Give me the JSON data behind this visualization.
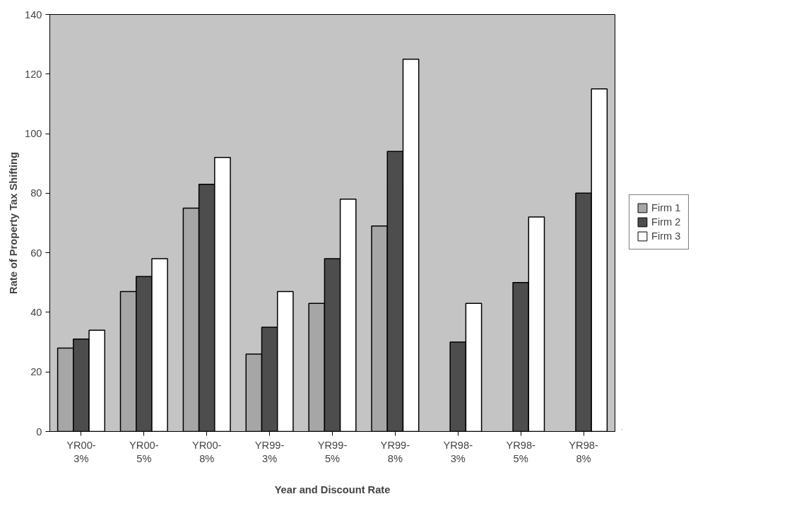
{
  "chart_data": {
    "type": "bar",
    "xlabel": "Year and Discount Rate",
    "ylabel": "Rate of Property Tax Shifting",
    "categories": [
      "YR00-\n3%",
      "YR00-\n5%",
      "YR00-\n8%",
      "YR99-\n3%",
      "YR99-\n5%",
      "YR99-\n8%",
      "YR98-\n3%",
      "YR98-\n5%",
      "YR98-\n8%"
    ],
    "series": [
      {
        "name": "Firm 1",
        "color": "#a6a6a6",
        "values": [
          28,
          47,
          75,
          26,
          43,
          69,
          null,
          null,
          null
        ]
      },
      {
        "name": "Firm 2",
        "color": "#4d4d4d",
        "values": [
          31,
          52,
          83,
          35,
          58,
          94,
          30,
          50,
          80
        ]
      },
      {
        "name": "Firm 3",
        "color": "#ffffff",
        "values": [
          34,
          58,
          92,
          47,
          78,
          125,
          43,
          72,
          115
        ]
      }
    ],
    "ylim": [
      0,
      140
    ],
    "yticks": [
      0,
      20,
      40,
      60,
      80,
      100,
      120,
      140
    ],
    "grid": false,
    "legend": "right"
  }
}
